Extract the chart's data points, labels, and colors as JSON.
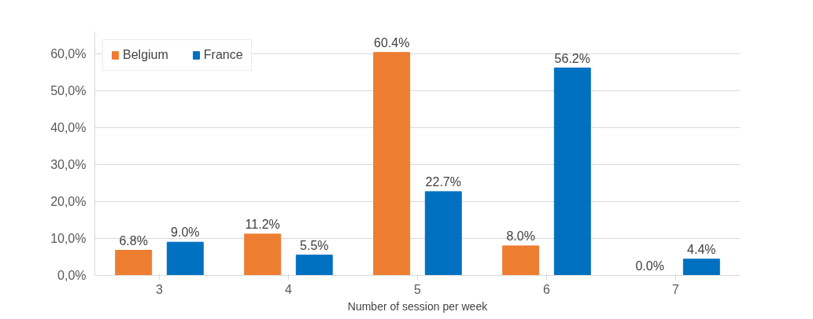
{
  "chart_data": {
    "type": "bar",
    "xlabel": "Number of session per week",
    "categories": [
      "3",
      "4",
      "5",
      "6",
      "7"
    ],
    "series": [
      {
        "name": "Belgium",
        "color": "#ed7d31",
        "values": [
          6.8,
          11.2,
          60.4,
          8.0,
          0.0
        ],
        "value_labels": [
          "6.8%",
          "11.2%",
          "60.4%",
          "8.0%",
          "0.0%"
        ]
      },
      {
        "name": "France",
        "color": "#0070c0",
        "values": [
          9.0,
          5.5,
          22.7,
          56.2,
          4.4
        ],
        "value_labels": [
          "9.0%",
          "5.5%",
          "22.7%",
          "56.2%",
          "4.4%"
        ]
      }
    ],
    "ylim": [
      0,
      66
    ],
    "yticks": [
      {
        "value": 0,
        "label": "0,0%"
      },
      {
        "value": 10,
        "label": "10,0%"
      },
      {
        "value": 20,
        "label": "20,0%"
      },
      {
        "value": 30,
        "label": "30,0%"
      },
      {
        "value": 40,
        "label": "40,0%"
      },
      {
        "value": 50,
        "label": "50,0%"
      },
      {
        "value": 60,
        "label": "60,0%"
      }
    ],
    "grid": "y",
    "legend": "top left"
  }
}
